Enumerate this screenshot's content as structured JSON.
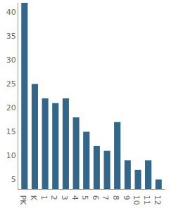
{
  "chart_data": {
    "type": "bar",
    "categories": [
      "PK",
      "K",
      "1",
      "2",
      "3",
      "4",
      "5",
      "6",
      "7",
      "8",
      "9",
      "10",
      "11",
      "12"
    ],
    "values": [
      42,
      25,
      22,
      21,
      22,
      18,
      15,
      12,
      11,
      17,
      9,
      7,
      9,
      5
    ],
    "color": "#336688",
    "ylim": [
      3,
      42
    ],
    "yticks": [
      5,
      10,
      15,
      20,
      25,
      30,
      35,
      40
    ],
    "grid": false
  }
}
